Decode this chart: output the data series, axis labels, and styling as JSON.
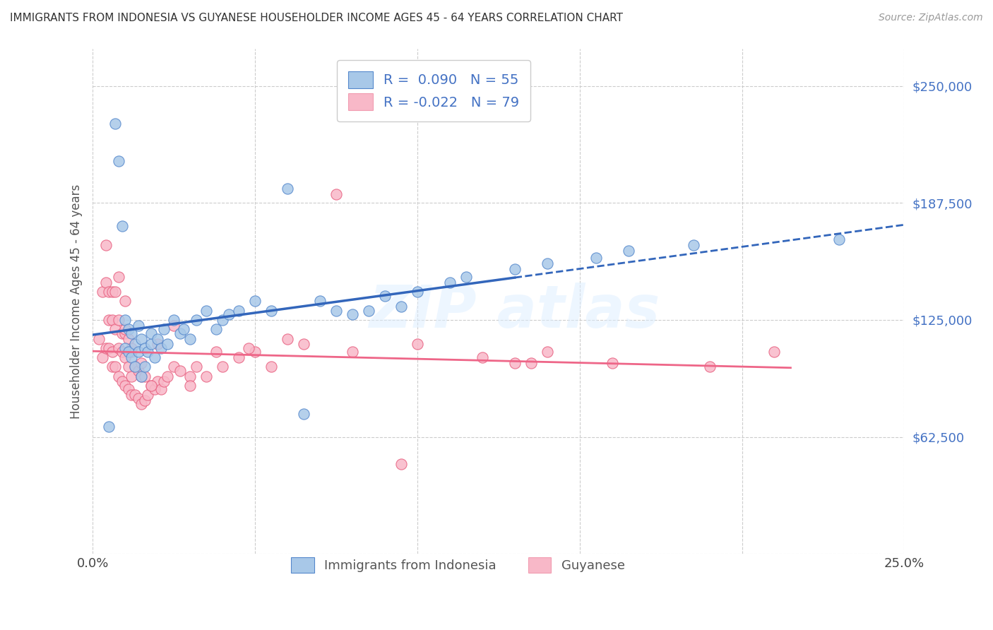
{
  "title": "IMMIGRANTS FROM INDONESIA VS GUYANESE HOUSEHOLDER INCOME AGES 45 - 64 YEARS CORRELATION CHART",
  "source": "Source: ZipAtlas.com",
  "ylabel": "Householder Income Ages 45 - 64 years",
  "xlim": [
    0.0,
    0.25
  ],
  "ylim": [
    0,
    270000
  ],
  "xticks": [
    0.0,
    0.05,
    0.1,
    0.15,
    0.2,
    0.25
  ],
  "xticklabels": [
    "0.0%",
    "",
    "",
    "",
    "",
    "25.0%"
  ],
  "yticks": [
    0,
    62500,
    125000,
    187500,
    250000
  ],
  "yticklabels": [
    "",
    "$62,500",
    "$125,000",
    "$187,500",
    "$250,000"
  ],
  "blue_R": 0.09,
  "blue_N": 55,
  "pink_R": -0.022,
  "pink_N": 79,
  "blue_dot_color": "#a8c8e8",
  "blue_edge_color": "#5588cc",
  "pink_dot_color": "#f8b8c8",
  "pink_edge_color": "#e8608080",
  "blue_line_color": "#3366bb",
  "pink_line_color": "#ee6688",
  "grid_color": "#cccccc",
  "background_color": "#ffffff",
  "legend_label_blue": "Immigrants from Indonesia",
  "legend_label_pink": "Guyanese",
  "blue_scatter_x": [
    0.005,
    0.007,
    0.008,
    0.009,
    0.01,
    0.01,
    0.011,
    0.011,
    0.012,
    0.012,
    0.013,
    0.013,
    0.014,
    0.014,
    0.015,
    0.015,
    0.016,
    0.016,
    0.017,
    0.018,
    0.018,
    0.019,
    0.02,
    0.021,
    0.022,
    0.023,
    0.025,
    0.027,
    0.028,
    0.03,
    0.032,
    0.035,
    0.038,
    0.04,
    0.042,
    0.045,
    0.05,
    0.055,
    0.06,
    0.065,
    0.07,
    0.075,
    0.08,
    0.085,
    0.09,
    0.095,
    0.1,
    0.11,
    0.115,
    0.13,
    0.14,
    0.155,
    0.165,
    0.185,
    0.23
  ],
  "blue_scatter_y": [
    68000,
    230000,
    210000,
    175000,
    110000,
    125000,
    108000,
    120000,
    105000,
    118000,
    100000,
    112000,
    108000,
    122000,
    95000,
    115000,
    100000,
    110000,
    108000,
    112000,
    118000,
    105000,
    115000,
    110000,
    120000,
    112000,
    125000,
    118000,
    120000,
    115000,
    125000,
    130000,
    120000,
    125000,
    128000,
    130000,
    135000,
    130000,
    195000,
    75000,
    135000,
    130000,
    128000,
    130000,
    138000,
    132000,
    140000,
    145000,
    148000,
    152000,
    155000,
    158000,
    162000,
    165000,
    168000
  ],
  "pink_scatter_x": [
    0.002,
    0.003,
    0.003,
    0.004,
    0.004,
    0.004,
    0.005,
    0.005,
    0.005,
    0.006,
    0.006,
    0.006,
    0.006,
    0.007,
    0.007,
    0.007,
    0.008,
    0.008,
    0.008,
    0.008,
    0.009,
    0.009,
    0.009,
    0.01,
    0.01,
    0.01,
    0.01,
    0.011,
    0.011,
    0.011,
    0.012,
    0.012,
    0.012,
    0.013,
    0.013,
    0.014,
    0.014,
    0.015,
    0.015,
    0.016,
    0.016,
    0.017,
    0.018,
    0.019,
    0.02,
    0.021,
    0.022,
    0.023,
    0.025,
    0.027,
    0.03,
    0.032,
    0.035,
    0.04,
    0.045,
    0.05,
    0.055,
    0.065,
    0.08,
    0.1,
    0.12,
    0.14,
    0.16,
    0.19,
    0.21,
    0.135,
    0.095,
    0.075,
    0.06,
    0.048,
    0.038,
    0.03,
    0.025,
    0.02,
    0.018,
    0.015,
    0.012,
    0.01,
    0.13
  ],
  "pink_scatter_y": [
    115000,
    105000,
    140000,
    110000,
    145000,
    165000,
    125000,
    110000,
    140000,
    100000,
    125000,
    140000,
    108000,
    100000,
    120000,
    140000,
    95000,
    110000,
    125000,
    148000,
    92000,
    108000,
    118000,
    90000,
    105000,
    118000,
    135000,
    88000,
    100000,
    115000,
    85000,
    95000,
    108000,
    85000,
    100000,
    83000,
    98000,
    80000,
    95000,
    82000,
    95000,
    85000,
    90000,
    88000,
    92000,
    88000,
    92000,
    95000,
    100000,
    98000,
    95000,
    100000,
    95000,
    100000,
    105000,
    108000,
    100000,
    112000,
    108000,
    112000,
    105000,
    108000,
    102000,
    100000,
    108000,
    102000,
    48000,
    192000,
    115000,
    110000,
    108000,
    90000,
    122000,
    112000,
    90000,
    102000,
    110000,
    120000,
    102000
  ]
}
